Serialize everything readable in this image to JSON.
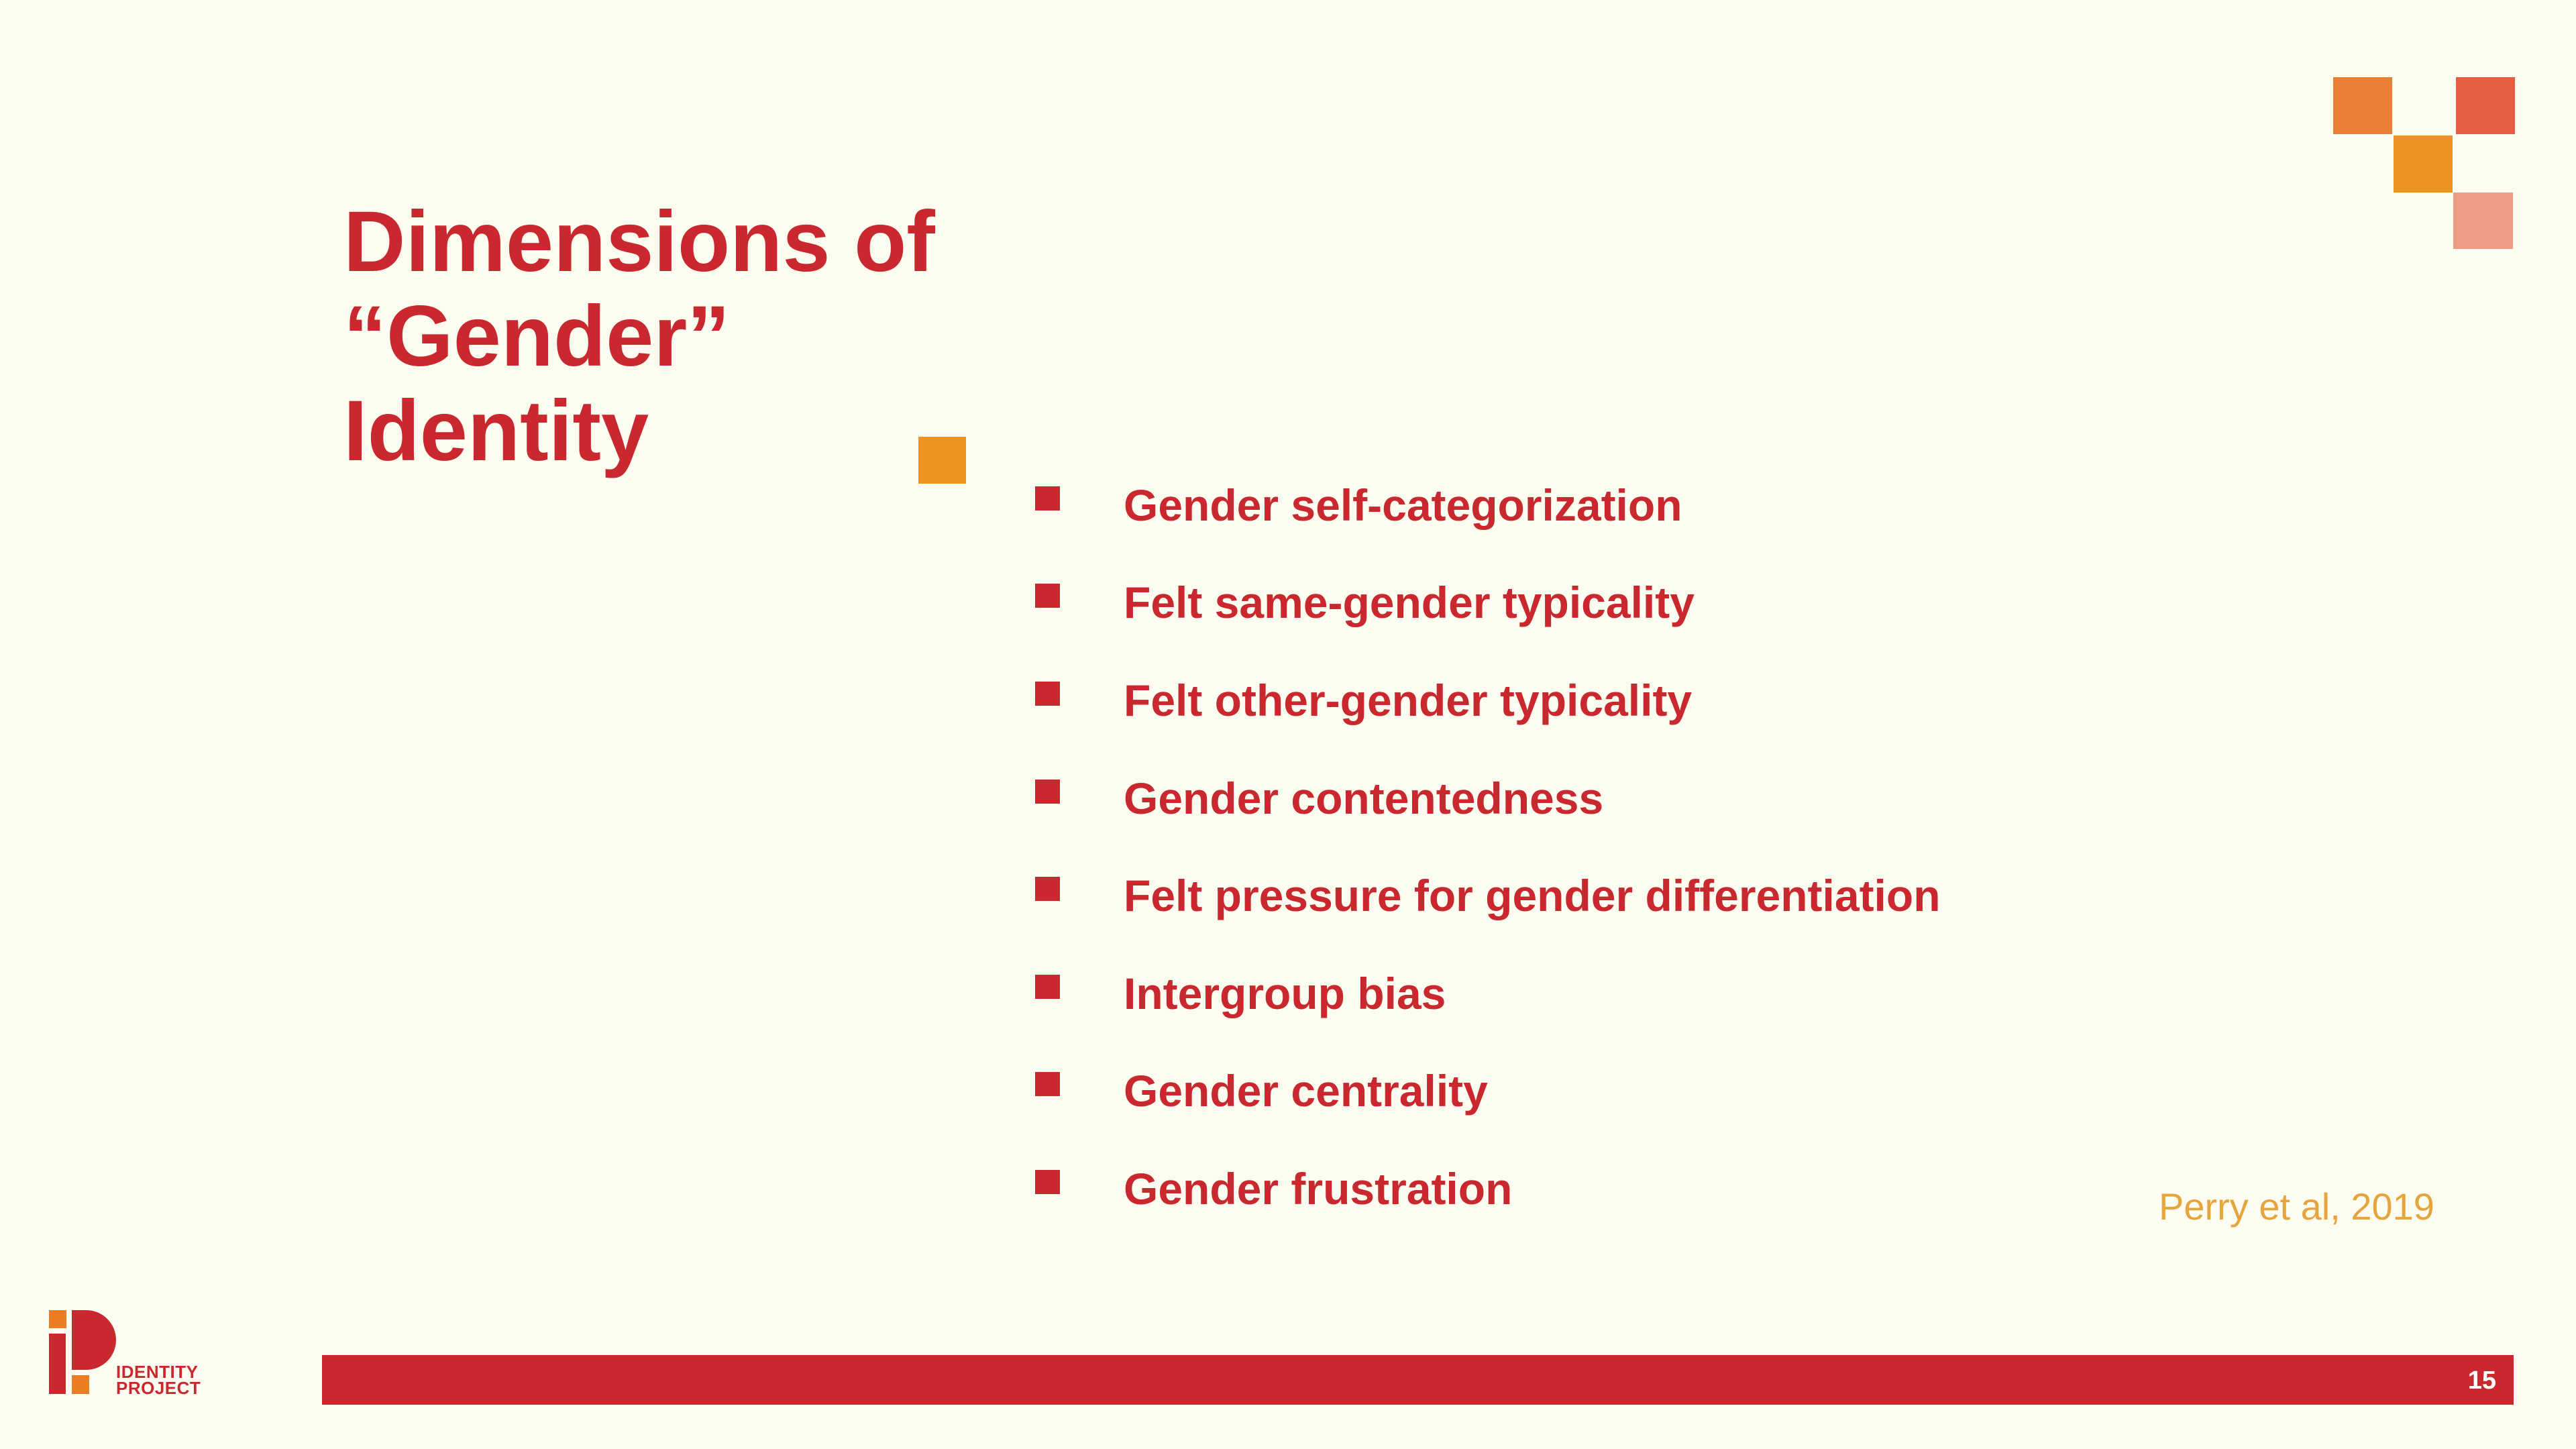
{
  "slide": {
    "title_lines": [
      "Dimensions of",
      "“Gender”",
      "Identity"
    ],
    "bullets": [
      "Gender self-categorization",
      "Felt same-gender typicality",
      "Felt other-gender typicality",
      "Gender contentedness",
      "Felt pressure for gender differentiation",
      "Intergroup bias",
      "Gender centrality",
      "Gender frustration"
    ],
    "citation": "Perry et al, 2019",
    "page_number": "15"
  },
  "logo": {
    "line1": "IDENTITY",
    "line2": "PROJECT"
  },
  "colors": {
    "background": "#FDFCF0",
    "primary_red": "#C8282E",
    "orange": "#F0941E",
    "citation": "#E6A43C",
    "deco_orange": "#EA7E32",
    "deco_red": "#E55E42",
    "deco_amber": "#EF921F",
    "deco_pink": "#EC9C84"
  }
}
